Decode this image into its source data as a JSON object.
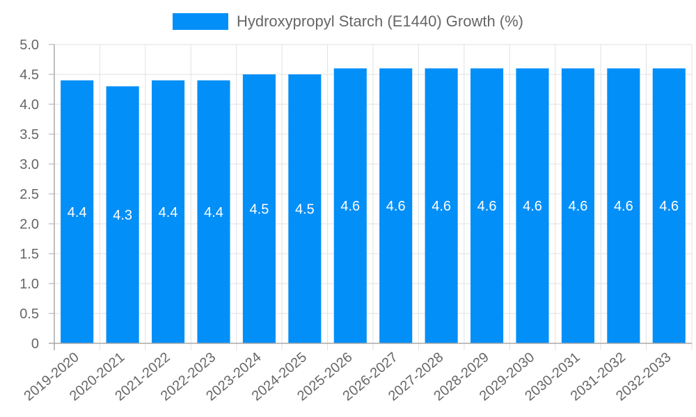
{
  "legend": {
    "label": "Hydroxypropyl Starch (E1440) Growth (%)",
    "color": "#038ff8"
  },
  "colors": {
    "bar": "#038ff8",
    "grid": "#e1e1e1",
    "axis": "#a8a8a8",
    "tick_text": "#666666",
    "data_label": "#ffffff"
  },
  "chart_data": {
    "type": "bar",
    "title": "",
    "xlabel": "",
    "ylabel": "",
    "legend": [
      "Hydroxypropyl Starch (E1440) Growth (%)"
    ],
    "legend_position": "top",
    "grid": true,
    "categories": [
      "2019-2020",
      "2020-2021",
      "2021-2022",
      "2022-2023",
      "2023-2024",
      "2024-2025",
      "2025-2026",
      "2026-2027",
      "2027-2028",
      "2028-2029",
      "2029-2030",
      "2030-2031",
      "2031-2032",
      "2032-2033"
    ],
    "series": [
      {
        "name": "Hydroxypropyl Starch (E1440) Growth (%)",
        "values": [
          4.4,
          4.3,
          4.4,
          4.4,
          4.5,
          4.5,
          4.6,
          4.6,
          4.6,
          4.6,
          4.6,
          4.6,
          4.6,
          4.6
        ]
      }
    ],
    "ylim": [
      0,
      5.0
    ],
    "yticks": [
      "0",
      "0.5",
      "1.0",
      "1.5",
      "2.0",
      "2.5",
      "3.0",
      "3.5",
      "4.0",
      "4.5",
      "5.0"
    ]
  }
}
